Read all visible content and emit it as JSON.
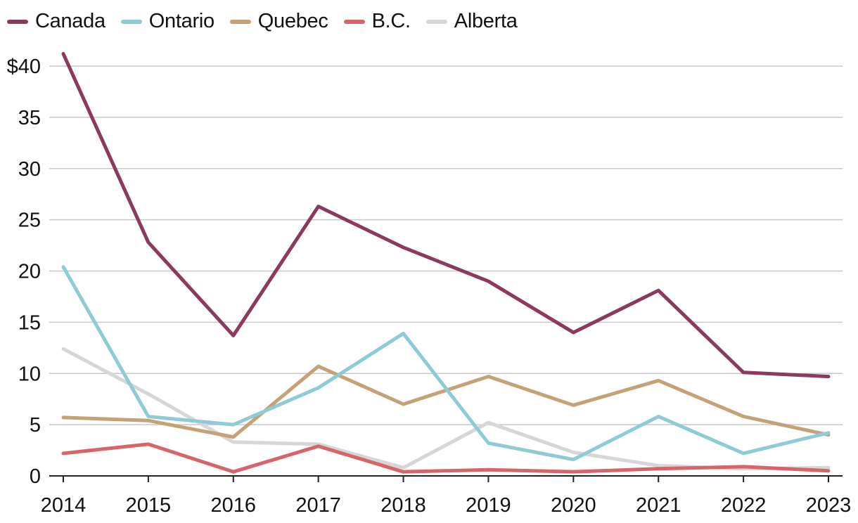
{
  "chart_data": {
    "type": "line",
    "title": "",
    "xlabel": "",
    "ylabel": "",
    "ylim": [
      0,
      40
    ],
    "yticks": [
      0,
      5,
      10,
      15,
      20,
      25,
      30,
      35,
      40
    ],
    "ytick_labels": [
      "0",
      "5",
      "10",
      "15",
      "20",
      "25",
      "30",
      "35",
      "$40"
    ],
    "x": [
      "2014",
      "2015",
      "2016",
      "2017",
      "2018",
      "2019",
      "2020",
      "2021",
      "2022",
      "2023"
    ],
    "grid": true,
    "legend_position": "top-left",
    "series": [
      {
        "name": "Canada",
        "color": "#8a3a5e",
        "values": [
          41.2,
          22.8,
          13.7,
          26.3,
          22.3,
          19.0,
          14.0,
          18.1,
          10.1,
          9.7
        ]
      },
      {
        "name": "Ontario",
        "color": "#8ecbd4",
        "values": [
          20.4,
          5.8,
          5.0,
          8.6,
          13.9,
          3.2,
          1.6,
          5.8,
          2.2,
          4.2
        ]
      },
      {
        "name": "Quebec",
        "color": "#c4a278",
        "values": [
          5.7,
          5.4,
          3.8,
          10.7,
          7.0,
          9.7,
          6.9,
          9.3,
          5.8,
          4.0
        ]
      },
      {
        "name": "B.C.",
        "color": "#d6646a",
        "values": [
          2.2,
          3.1,
          0.4,
          2.9,
          0.4,
          0.6,
          0.4,
          0.7,
          0.9,
          0.5
        ]
      },
      {
        "name": "Alberta",
        "color": "#d6d6d6",
        "values": [
          12.4,
          8.0,
          3.3,
          3.1,
          0.8,
          5.2,
          2.3,
          1.0,
          0.7,
          0.8
        ]
      }
    ]
  }
}
